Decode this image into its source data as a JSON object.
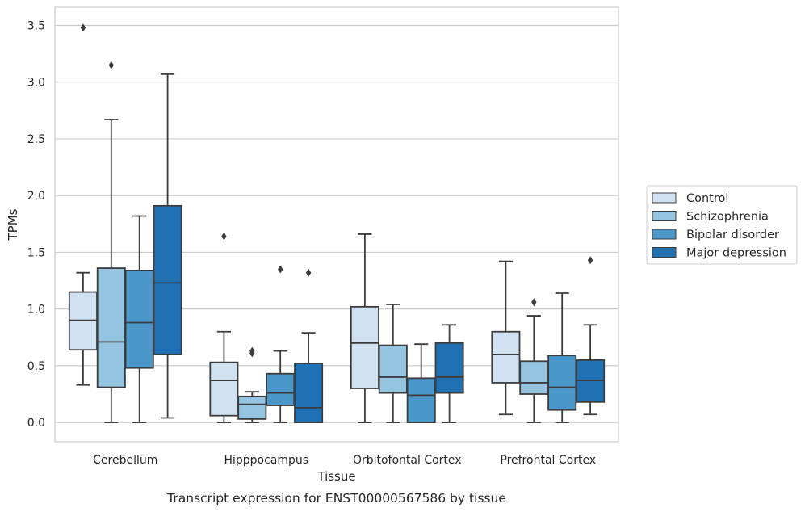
{
  "caption": "Transcript expression for ENST00000567586 by tissue",
  "chart_data": {
    "type": "boxplot",
    "xlabel": "Tissue",
    "ylabel": "TPMs",
    "ylim": [
      -0.17,
      3.66
    ],
    "yticks": [
      0.0,
      0.5,
      1.0,
      1.5,
      2.0,
      2.5,
      3.0,
      3.5
    ],
    "ytick_labels": [
      "0.0",
      "0.5",
      "1.0",
      "1.5",
      "2.0",
      "2.5",
      "3.0",
      "3.5"
    ],
    "grid": "horizontal",
    "legend_position": "right",
    "categories": [
      "Cerebellum",
      "Hipppocampus",
      "Orbitofontal Cortex",
      "Prefrontal Cortex"
    ],
    "series": [
      {
        "name": "Control",
        "color": "#d0e1f2",
        "boxes": [
          {
            "whislo": 0.33,
            "q1": 0.64,
            "med": 0.9,
            "q3": 1.15,
            "whishi": 1.32,
            "fliers": [
              3.48
            ]
          },
          {
            "whislo": 0.0,
            "q1": 0.06,
            "med": 0.37,
            "q3": 0.53,
            "whishi": 0.8,
            "fliers": [
              1.64
            ]
          },
          {
            "whislo": 0.0,
            "q1": 0.3,
            "med": 0.7,
            "q3": 1.02,
            "whishi": 1.66,
            "fliers": []
          },
          {
            "whislo": 0.07,
            "q1": 0.35,
            "med": 0.6,
            "q3": 0.8,
            "whishi": 1.42,
            "fliers": []
          }
        ]
      },
      {
        "name": "Schizophrenia",
        "color": "#94c4df",
        "boxes": [
          {
            "whislo": 0.0,
            "q1": 0.31,
            "med": 0.71,
            "q3": 1.36,
            "whishi": 2.67,
            "fliers": [
              3.15
            ]
          },
          {
            "whislo": 0.0,
            "q1": 0.03,
            "med": 0.16,
            "q3": 0.23,
            "whishi": 0.27,
            "fliers": [
              0.61,
              0.63
            ]
          },
          {
            "whislo": 0.0,
            "q1": 0.26,
            "med": 0.4,
            "q3": 0.68,
            "whishi": 1.04,
            "fliers": []
          },
          {
            "whislo": 0.0,
            "q1": 0.25,
            "med": 0.35,
            "q3": 0.54,
            "whishi": 0.94,
            "fliers": [
              1.06
            ]
          }
        ]
      },
      {
        "name": "Bipolar disorder",
        "color": "#4a98c9",
        "boxes": [
          {
            "whislo": 0.0,
            "q1": 0.48,
            "med": 0.88,
            "q3": 1.34,
            "whishi": 1.82,
            "fliers": []
          },
          {
            "whislo": 0.0,
            "q1": 0.15,
            "med": 0.26,
            "q3": 0.43,
            "whishi": 0.63,
            "fliers": [
              1.35
            ]
          },
          {
            "whislo": 0.0,
            "q1": 0.0,
            "med": 0.24,
            "q3": 0.39,
            "whishi": 0.69,
            "fliers": []
          },
          {
            "whislo": 0.0,
            "q1": 0.11,
            "med": 0.31,
            "q3": 0.59,
            "whishi": 1.14,
            "fliers": []
          }
        ]
      },
      {
        "name": "Major depression",
        "color": "#2070b4",
        "boxes": [
          {
            "whislo": 0.04,
            "q1": 0.6,
            "med": 1.23,
            "q3": 1.91,
            "whishi": 3.07,
            "fliers": []
          },
          {
            "whislo": 0.0,
            "q1": 0.0,
            "med": 0.13,
            "q3": 0.52,
            "whishi": 0.79,
            "fliers": [
              1.32
            ]
          },
          {
            "whislo": 0.0,
            "q1": 0.26,
            "med": 0.4,
            "q3": 0.7,
            "whishi": 0.86,
            "fliers": []
          },
          {
            "whislo": 0.07,
            "q1": 0.18,
            "med": 0.37,
            "q3": 0.55,
            "whishi": 0.86,
            "fliers": [
              1.43
            ]
          }
        ]
      }
    ]
  }
}
